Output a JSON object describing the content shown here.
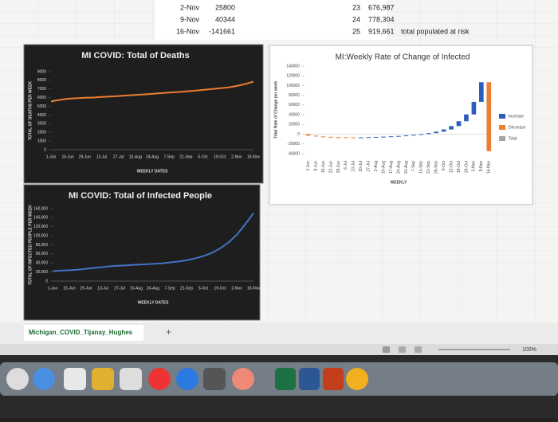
{
  "table": {
    "rows": [
      [
        "2-Nov",
        "25800"
      ],
      [
        "9-Nov",
        "40344"
      ],
      [
        "16-Nov",
        "-141661"
      ]
    ],
    "right_rows": [
      [
        "23",
        "676,987",
        ""
      ],
      [
        "24",
        "778,304",
        ""
      ],
      [
        "25",
        "919,661",
        "total populated at risk"
      ]
    ]
  },
  "chart_data": [
    {
      "type": "line",
      "title": "MI COVID: Total of Deaths",
      "y_label": "TOTAL OF DEATHS PER WEEK",
      "x_label": "WEEKLY DATES",
      "categories": [
        "1-Jun",
        null,
        "15-Jun",
        null,
        "29-Jun",
        null,
        "13-Jul",
        null,
        "27-Jul",
        null,
        "10-Aug",
        null,
        "24-Aug",
        null,
        "7-Sep",
        null,
        "21-Sep",
        null,
        "5-Oct",
        null,
        "19-Oct",
        null,
        "2-Nov",
        null,
        "16-Nov"
      ],
      "values": [
        5570,
        5740,
        5880,
        5940,
        5990,
        6020,
        6080,
        6130,
        6190,
        6260,
        6310,
        6370,
        6440,
        6520,
        6590,
        6650,
        6730,
        6800,
        6900,
        6990,
        7080,
        7180,
        7350,
        7570,
        7850
      ],
      "color": "#ed7d31",
      "ylim": [
        0,
        9000
      ],
      "yticks": [
        0,
        1000,
        2000,
        3000,
        4000,
        5000,
        6000,
        7000,
        8000,
        9000
      ],
      "grid": false
    },
    {
      "type": "line",
      "title": "MI COVID: Total of Infected People",
      "y_label": "TOTAL OF INFECTED PEOPLE PER WEEK",
      "x_label": "WEEKLY DATES",
      "categories": [
        "1-Jun",
        null,
        "15-Jun",
        null,
        "29-Jun",
        null,
        "13-Jul",
        null,
        "27-Jul",
        null,
        "10-Aug",
        null,
        "24-Aug",
        null,
        "7-Sep",
        null,
        "21-Sep",
        null,
        "5-Oct",
        null,
        "19-Oct",
        null,
        "2-Nov",
        null,
        "16-Nov"
      ],
      "values": [
        22000,
        23000,
        24000,
        25000,
        27000,
        29000,
        31000,
        33000,
        34000,
        35000,
        36000,
        37000,
        38000,
        39000,
        41000,
        43000,
        46000,
        50000,
        55000,
        62000,
        72000,
        85000,
        102000,
        125000,
        150000
      ],
      "color": "#4472c4",
      "ylim": [
        0,
        160000
      ],
      "yticks": [
        0,
        {
          "value": 20000,
          "label": "20,000"
        },
        {
          "value": 40000,
          "label": "40,000"
        },
        {
          "value": 60000,
          "label": "60,000"
        },
        {
          "value": 80000,
          "label": "80,000"
        },
        {
          "value": 100000,
          "label": "100,000"
        },
        {
          "value": 120000,
          "label": "120,000"
        },
        {
          "value": 140000,
          "label": "140,000"
        },
        {
          "value": 160000,
          "label": "160,000"
        }
      ],
      "grid": false
    },
    {
      "type": "waterfall",
      "title": "MI:Weekly Rate of Change of Infected",
      "y_label": "Total Rate of Change per week",
      "x_label": "WEEKLY",
      "categories": [
        "1-Jun",
        "8-Jun",
        "15-Jun",
        "22-Jun",
        "29-Jun",
        "6-Jul",
        "13-Jul",
        "20-Jul",
        "27-Jul",
        "3-Aug",
        "10-Aug",
        "17-Aug",
        "24-Aug",
        "31-Aug",
        "7-Sep",
        "14-Sep",
        "21-Sep",
        "28-Sep",
        "5-Oct",
        "12-Oct",
        "19-Oct",
        "26-Oct",
        "2-Nov",
        "9-Nov",
        "16-Nov"
      ],
      "values": [
        -3000,
        -1500,
        -800,
        -600,
        -400,
        -300,
        -200,
        300,
        400,
        500,
        600,
        700,
        800,
        1000,
        1200,
        1500,
        2000,
        3000,
        4500,
        7000,
        10000,
        14000,
        25800,
        40344,
        -141661
      ],
      "legend": [
        {
          "name": "Increase",
          "color": "#2e5eb8"
        },
        {
          "name": "Decrease",
          "color": "#ed7d31"
        },
        {
          "name": "Total",
          "color": "#a5a5a5"
        }
      ],
      "legend_position": "right",
      "ylim": [
        -40000,
        140000
      ],
      "yticks": [
        -40000,
        -20000,
        0,
        20000,
        40000,
        60000,
        80000,
        100000,
        120000,
        140000
      ],
      "grid": false
    }
  ],
  "sheet_tab": "Michigan_COVID_Tijanay_Hughes",
  "add_sheet": "+",
  "zoom": "100%"
}
